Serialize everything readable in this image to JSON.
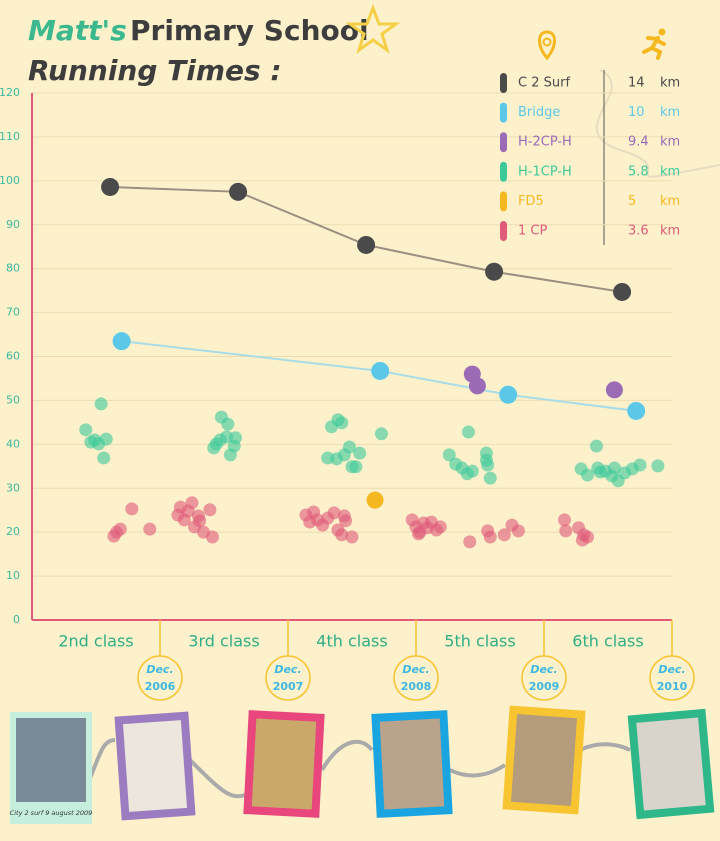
{
  "chart_data": {
    "type": "scatter",
    "title_parts": [
      "Matt's",
      "Primary School",
      "Running Times :"
    ],
    "xlim": [
      1.5,
      6.5
    ],
    "xticks": [
      {
        "value": 2,
        "label": "2nd class"
      },
      {
        "value": 3,
        "label": "3rd class"
      },
      {
        "value": 4,
        "label": "4th class"
      },
      {
        "value": 5,
        "label": "5th class"
      },
      {
        "value": 6,
        "label": "6th class"
      }
    ],
    "date_markers": [
      {
        "value": 2.5,
        "month": "Dec.",
        "year": "2006"
      },
      {
        "value": 3.5,
        "month": "Dec.",
        "year": "2007"
      },
      {
        "value": 4.5,
        "month": "Dec.",
        "year": "2008"
      },
      {
        "value": 5.5,
        "month": "Dec.",
        "year": "2009"
      },
      {
        "value": 6.5,
        "month": "Dec.",
        "year": "2010"
      }
    ],
    "ylim": [
      0,
      120
    ],
    "yticks": [
      0,
      10,
      20,
      30,
      40,
      50,
      60,
      70,
      80,
      90,
      100,
      110,
      120
    ],
    "grid": true,
    "unit": "km",
    "series": [
      {
        "name": "C 2 Surf",
        "color": "#4a4a4a",
        "line": true,
        "distance": 14,
        "x": [
          2.11,
          3.11,
          4.11,
          5.11,
          6.11
        ],
        "values": [
          98.6,
          97.5,
          85.4,
          79.3,
          74.7
        ]
      },
      {
        "name": "Bridge",
        "color": "#5cc8e8",
        "line": true,
        "distance": 10,
        "x": [
          2.2,
          4.22,
          5.22,
          6.22
        ],
        "values": [
          63.5,
          56.7,
          51.3,
          47.6
        ]
      },
      {
        "name": "H-2CP-H",
        "color": "#9b6bb5",
        "line": false,
        "distance": 9.4,
        "x": [
          4.94,
          4.98,
          6.05
        ],
        "values": [
          56.0,
          53.3,
          52.4
        ]
      },
      {
        "name": "H-1CP-H",
        "color": "#3cc99a",
        "line": false,
        "distance": 5.8,
        "x": [
          1.92,
          2.04,
          1.99,
          2.02,
          2.08,
          2.06,
          1.96,
          2.98,
          3.03,
          2.94,
          2.92,
          3.02,
          3.09,
          3.05,
          3.08,
          2.97,
          3.84,
          3.89,
          3.88,
          3.94,
          3.98,
          4.0,
          4.03,
          4.06,
          4.23,
          3.92,
          3.81,
          4.91,
          4.76,
          4.81,
          4.86,
          4.9,
          4.94,
          5.05,
          5.06,
          5.05,
          5.08,
          5.91,
          5.79,
          5.84,
          5.92,
          5.98,
          6.03,
          6.08,
          6.13,
          6.19,
          6.25,
          6.39,
          5.94,
          6.05
        ],
        "values": [
          43.3,
          49.2,
          41.0,
          40.1,
          41.2,
          36.9,
          40.5,
          46.2,
          44.6,
          40.1,
          39.2,
          41.7,
          41.5,
          37.6,
          39.6,
          41.0,
          44.0,
          45.6,
          36.7,
          37.6,
          39.4,
          34.9,
          34.9,
          38.0,
          42.4,
          44.9,
          36.9,
          42.8,
          37.6,
          35.5,
          34.6,
          33.3,
          33.9,
          38.0,
          35.3,
          36.4,
          32.3,
          39.6,
          34.4,
          33.0,
          34.6,
          33.9,
          32.8,
          31.7,
          33.5,
          34.4,
          35.3,
          35.1,
          33.7,
          34.6
        ]
      },
      {
        "name": "FD5",
        "color": "#f5b820",
        "line": false,
        "distance": 5,
        "x": [
          4.18
        ],
        "values": [
          27.3
        ]
      },
      {
        "name": "1 CP",
        "color": "#e05a7a",
        "line": false,
        "distance": 3.6,
        "x": [
          2.14,
          2.16,
          2.19,
          2.28,
          2.42,
          2.64,
          2.66,
          2.69,
          2.72,
          2.75,
          2.77,
          2.8,
          2.81,
          2.84,
          2.91,
          2.89,
          3.64,
          3.67,
          3.7,
          3.73,
          3.77,
          3.81,
          3.86,
          3.89,
          3.92,
          3.95,
          4.0,
          3.94,
          4.47,
          4.5,
          4.53,
          4.56,
          4.59,
          4.62,
          4.66,
          4.69,
          4.92,
          5.06,
          5.08,
          5.19,
          5.25,
          5.3,
          4.52,
          5.66,
          5.67,
          5.77,
          5.8,
          5.81,
          5.84
        ],
        "values": [
          19.1,
          20.0,
          20.7,
          25.3,
          20.7,
          23.9,
          25.7,
          22.8,
          24.8,
          26.7,
          21.2,
          23.7,
          22.6,
          20.0,
          18.9,
          25.1,
          23.9,
          22.3,
          24.6,
          22.8,
          21.6,
          23.2,
          24.4,
          20.5,
          19.4,
          22.6,
          18.9,
          23.7,
          22.8,
          21.2,
          20.0,
          22.1,
          21.0,
          22.3,
          20.5,
          21.2,
          17.8,
          20.3,
          18.9,
          19.4,
          21.6,
          20.3,
          19.6,
          22.8,
          20.3,
          21.0,
          18.2,
          19.4,
          18.9
        ]
      }
    ],
    "photo_caption": "City 2 surf 9 august 2009"
  }
}
